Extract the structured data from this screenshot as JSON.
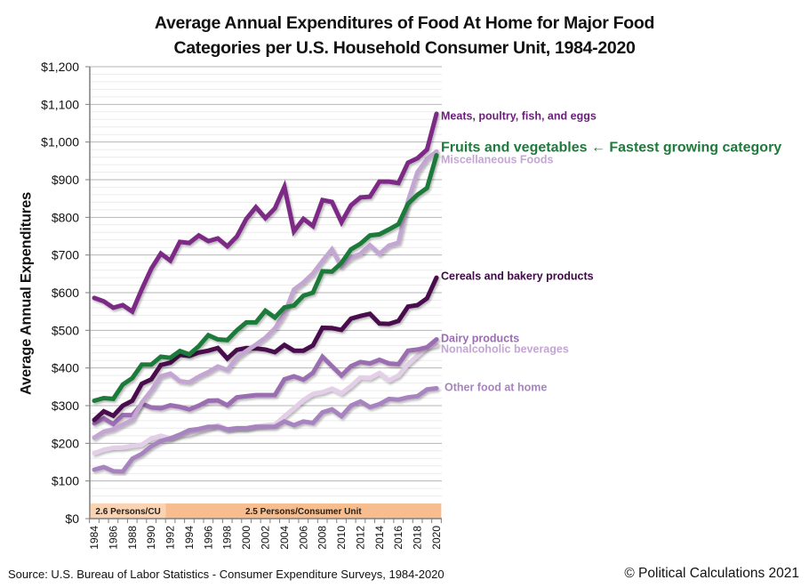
{
  "chart_data": {
    "type": "line",
    "title": [
      "Average Annual Expenditures of Food At Home for Major Food",
      "Categories per U.S. Household Consumer Unit, 1984-2020"
    ],
    "xlabel": "",
    "ylabel": "Average Annual Expenditures",
    "ylim": [
      0,
      1200
    ],
    "xlim": [
      1984,
      2020
    ],
    "y_ticks": [
      0,
      100,
      200,
      300,
      400,
      500,
      600,
      700,
      800,
      900,
      1000,
      1100,
      1200
    ],
    "y_tick_labels": [
      "$0",
      "$100",
      "$200",
      "$300",
      "$400",
      "$500",
      "$600",
      "$700",
      "$800",
      "$900",
      "$1,000",
      "$1,100",
      "$1,200"
    ],
    "y_minor_step": 20,
    "grid": true,
    "x_tick_labels": [
      "1984",
      "1986",
      "1988",
      "1990",
      "1992",
      "1994",
      "1996",
      "1998",
      "2000",
      "2002",
      "2004",
      "2006",
      "2008",
      "2010",
      "2012",
      "2014",
      "2016",
      "2018",
      "2020"
    ],
    "x": [
      1984,
      1985,
      1986,
      1987,
      1988,
      1989,
      1990,
      1991,
      1992,
      1993,
      1994,
      1995,
      1996,
      1997,
      1998,
      1999,
      2000,
      2001,
      2002,
      2003,
      2004,
      2005,
      2006,
      2007,
      2008,
      2009,
      2010,
      2011,
      2012,
      2013,
      2014,
      2015,
      2016,
      2017,
      2018,
      2019,
      2020
    ],
    "bands": [
      {
        "label": "2.6 Persons/CU",
        "from": 1983.5,
        "to": 1991.5,
        "color": "#fad3b3"
      },
      {
        "label": "2.5 Persons/Consumer Unit",
        "from": 1991.5,
        "to": 2020.5,
        "color": "#f7bd8f"
      }
    ],
    "series": [
      {
        "name": "Meats, poultry, fish, and eggs",
        "label": "Meats, poultry, fish, and eggs",
        "color": "#7b2a86",
        "label_color": "#6a1f7a",
        "values": [
          586,
          577,
          560,
          567,
          550,
          609,
          664,
          704,
          685,
          735,
          732,
          752,
          737,
          744,
          723,
          749,
          796,
          827,
          798,
          824,
          881,
          763,
          796,
          777,
          846,
          841,
          787,
          832,
          853,
          855,
          895,
          895,
          891,
          945,
          957,
          980,
          1075
        ]
      },
      {
        "name": "Fruits and vegetables",
        "label": "Fruits and vegetables ← Fastest growing category",
        "color": "#1e7a3a",
        "label_color": "#1e7a3a",
        "values": [
          313,
          320,
          318,
          356,
          373,
          409,
          409,
          430,
          427,
          445,
          436,
          458,
          487,
          476,
          474,
          500,
          521,
          521,
          552,
          534,
          561,
          566,
          592,
          600,
          657,
          656,
          679,
          715,
          730,
          752,
          755,
          768,
          782,
          836,
          860,
          878,
          965
        ]
      },
      {
        "name": "Miscellaneous Foods",
        "label": "Miscellaneous Foods",
        "color": "#c4a6d3",
        "label_color": "#c4a6d3",
        "values": [
          215,
          231,
          237,
          250,
          262,
          308,
          340,
          378,
          385,
          365,
          362,
          377,
          389,
          404,
          395,
          427,
          445,
          462,
          480,
          505,
          544,
          608,
          627,
          651,
          684,
          715,
          670,
          693,
          703,
          726,
          703,
          725,
          733,
          843,
          920,
          955,
          975
        ]
      },
      {
        "name": "Cereals and bakery products",
        "label": "Cereals and bakery products",
        "color": "#4a0c4e",
        "label_color": "#3d0a45",
        "values": [
          262,
          285,
          273,
          300,
          313,
          358,
          370,
          408,
          414,
          435,
          432,
          441,
          446,
          453,
          425,
          448,
          453,
          452,
          449,
          442,
          461,
          446,
          446,
          460,
          507,
          506,
          501,
          531,
          538,
          544,
          518,
          517,
          525,
          563,
          567,
          585,
          640
        ]
      },
      {
        "name": "Dairy products",
        "label": "Dairy products",
        "color": "#9b6db1",
        "label_color": "#9b6db1",
        "values": [
          253,
          266,
          251,
          275,
          275,
          305,
          295,
          293,
          301,
          297,
          290,
          300,
          313,
          314,
          301,
          322,
          325,
          328,
          328,
          328,
          370,
          378,
          369,
          387,
          430,
          405,
          380,
          405,
          416,
          412,
          422,
          412,
          410,
          446,
          449,
          455,
          476
        ]
      },
      {
        "name": "Nonalcoholic beverages",
        "label": "Nonalcoholic beverages",
        "color": "#e3cfe8",
        "label_color": "#c4a6d3",
        "values": [
          174,
          183,
          188,
          189,
          193,
          196,
          213,
          220,
          213,
          222,
          225,
          233,
          240,
          248,
          237,
          240,
          240,
          245,
          248,
          250,
          272,
          293,
          315,
          331,
          336,
          345,
          333,
          352,
          375,
          373,
          387,
          367,
          380,
          410,
          433,
          455,
          461
        ]
      },
      {
        "name": "Other food at home",
        "label": "Other food at home",
        "color": "#a784c0",
        "label_color": "#a784c0",
        "values": [
          130,
          137,
          126,
          125,
          159,
          172,
          192,
          206,
          213,
          223,
          235,
          238,
          244,
          244,
          237,
          240,
          240,
          244,
          244,
          244,
          258,
          248,
          258,
          254,
          282,
          290,
          272,
          300,
          311,
          296,
          304,
          318,
          316,
          322,
          325,
          343,
          346
        ]
      }
    ]
  },
  "source": "Source: U.S. Bureau of Labor Statistics - Consumer Expenditure Surveys, 1984-2020",
  "copyright": "© Political Calculations 2021"
}
